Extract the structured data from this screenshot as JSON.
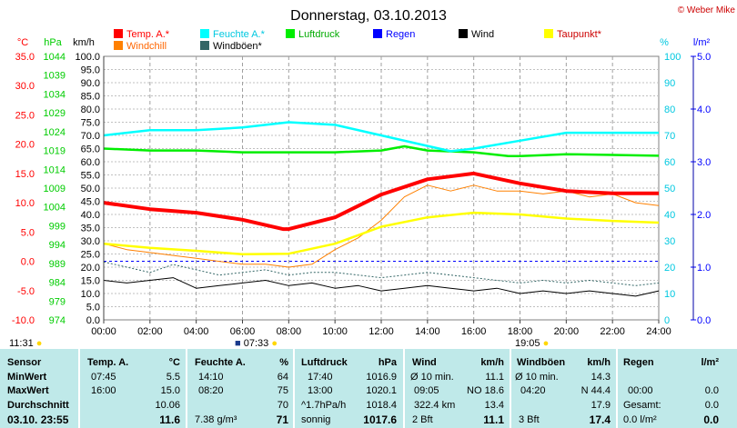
{
  "chart_data": {
    "type": "line",
    "title": "Donnerstag, 03.10.2013",
    "credit": "© Weber Mike",
    "x_ticks": [
      "00:00",
      "02:00",
      "04:00",
      "06:00",
      "08:00",
      "10:00",
      "12:00",
      "14:00",
      "16:00",
      "18:00",
      "20:00",
      "22:00",
      "24:00"
    ],
    "x_range": [
      0,
      24
    ],
    "axes": {
      "temp": {
        "unit": "°C",
        "color": "#ff0000",
        "ticks": [
          "35.0",
          "30.0",
          "25.0",
          "20.0",
          "15.0",
          "10.0",
          "5.0",
          "0.0",
          "-5.0",
          "-10.0"
        ],
        "range": [
          -10,
          35
        ]
      },
      "pressure": {
        "unit": "hPa",
        "color": "#00cc00",
        "ticks": [
          "1044",
          "1039",
          "1034",
          "1029",
          "1024",
          "1019",
          "1014",
          "1009",
          "1004",
          "999",
          "994",
          "989",
          "984",
          "979",
          "974"
        ],
        "range": [
          974,
          1044
        ]
      },
      "wind": {
        "unit": "km/h",
        "color": "#000000",
        "ticks": [
          "100.0",
          "95.0",
          "90.0",
          "85.0",
          "80.0",
          "75.0",
          "70.0",
          "65.0",
          "60.0",
          "55.0",
          "50.0",
          "45.0",
          "40.0",
          "35.0",
          "30.0",
          "25.0",
          "20.0",
          "15.0",
          "10.0",
          "5.0",
          "0.0"
        ],
        "range": [
          0,
          100
        ]
      },
      "humidity": {
        "unit": "%",
        "color": "#00c8e0",
        "ticks": [
          "100",
          "90",
          "80",
          "70",
          "60",
          "50",
          "40",
          "30",
          "20",
          "10",
          "0"
        ],
        "range": [
          0,
          100
        ]
      },
      "rain": {
        "unit": "l/m²",
        "color": "#0000ff",
        "ticks": [
          "5.0",
          "4.0",
          "3.0",
          "2.0",
          "1.0",
          "0.0"
        ],
        "range": [
          0,
          5
        ]
      }
    },
    "grid": true,
    "legend": [
      {
        "name": "Temp. A.*",
        "color": "#ff0000"
      },
      {
        "name": "Feuchte A.*",
        "color": "#00ffff"
      },
      {
        "name": "Luftdruck",
        "color": "#00ee00"
      },
      {
        "name": "Regen",
        "color": "#0000ff"
      },
      {
        "name": "Wind",
        "color": "#000000"
      },
      {
        "name": "Taupunkt*",
        "color": "#ffff00"
      },
      {
        "name": "Windchill",
        "color": "#ff8000"
      },
      {
        "name": "Windböen*",
        "color": "#336666"
      }
    ],
    "series": [
      {
        "name": "Temp. A.*",
        "axis": "temp",
        "color": "#ff0000",
        "x": [
          0,
          2,
          4,
          6,
          7.75,
          8,
          10,
          12,
          14,
          16,
          18,
          20,
          22,
          24
        ],
        "y": [
          10.0,
          8.9,
          8.3,
          7.1,
          5.5,
          5.5,
          7.5,
          11.4,
          14.0,
          15.0,
          13.3,
          12.0,
          11.6,
          11.6
        ]
      },
      {
        "name": "Feuchte A.*",
        "axis": "humidity",
        "color": "#00ffff",
        "x": [
          0,
          2,
          4,
          6,
          8,
          10,
          12,
          14,
          15,
          16,
          18,
          20,
          22,
          24
        ],
        "y": [
          70,
          72,
          72,
          73,
          75,
          74,
          70,
          66,
          64,
          65,
          68,
          71,
          71,
          71
        ]
      },
      {
        "name": "Luftdruck",
        "axis": "pressure",
        "color": "#00ee00",
        "x": [
          0,
          2,
          4,
          6,
          8,
          10,
          12,
          13,
          14,
          16,
          17.5,
          18,
          20,
          22,
          24
        ],
        "y": [
          1019.5,
          1019,
          1019,
          1018.5,
          1018.5,
          1018.5,
          1019,
          1020.1,
          1019,
          1018.5,
          1017.5,
          1017.5,
          1018,
          1017.8,
          1017.6
        ]
      },
      {
        "name": "Taupunkt*",
        "axis": "temp",
        "color": "#ffff00",
        "x": [
          0,
          2,
          4,
          6,
          8,
          10,
          12,
          14,
          16,
          18,
          20,
          22,
          24
        ],
        "y": [
          3.0,
          2.3,
          1.8,
          1.2,
          1.3,
          3.0,
          5.9,
          7.5,
          8.3,
          8.0,
          7.3,
          6.9,
          6.6
        ]
      },
      {
        "name": "Windchill",
        "axis": "temp",
        "color": "#ff8000",
        "x": [
          0,
          1,
          2,
          3,
          4,
          5,
          6,
          7,
          8,
          9,
          10,
          11,
          12,
          13,
          14,
          15,
          16,
          17,
          18,
          19,
          20,
          21,
          22,
          23,
          24
        ],
        "y": [
          3.0,
          2.0,
          1.5,
          1.0,
          0.5,
          0,
          -0.5,
          -0.5,
          -1,
          -0.5,
          2,
          4,
          7,
          11,
          13,
          12,
          13,
          12,
          12,
          11.5,
          12,
          11,
          11.5,
          10,
          9.5
        ]
      },
      {
        "name": "Windböen*",
        "axis": "wind",
        "color": "#336666",
        "x": [
          0,
          1,
          2,
          3,
          4,
          5,
          6,
          7,
          8,
          9,
          10,
          11,
          12,
          13,
          14,
          15,
          16,
          17,
          18,
          19,
          20,
          21,
          22,
          23,
          24
        ],
        "y": [
          22,
          20,
          18,
          21,
          19,
          17,
          18,
          19,
          17,
          18,
          18,
          17,
          16,
          17,
          18,
          17,
          16,
          15,
          14,
          15,
          14,
          15,
          14,
          13,
          14
        ]
      },
      {
        "name": "Wind",
        "axis": "wind",
        "color": "#000000",
        "x": [
          0,
          1,
          2,
          3,
          4,
          5,
          6,
          7,
          8,
          9,
          10,
          11,
          12,
          13,
          14,
          15,
          16,
          17,
          18,
          19,
          20,
          21,
          22,
          23,
          24
        ],
        "y": [
          15,
          14,
          15,
          16,
          12,
          13,
          14,
          15,
          13,
          14,
          12,
          13,
          11,
          12,
          13,
          12,
          11,
          12,
          10,
          11,
          10,
          11,
          10,
          9,
          11
        ]
      }
    ],
    "reference_lines": [
      {
        "axis": "temp",
        "y": 0,
        "color": "#0000ff",
        "style": "dashed"
      }
    ],
    "markers": {
      "sunrise": "07:33",
      "sunset": "19:05",
      "moonrise": "11:31"
    }
  },
  "stats": {
    "headers": {
      "sensor": "Sensor",
      "temp": "Temp. A.",
      "temp_unit": "°C",
      "humidity": "Feuchte A.",
      "humidity_unit": "%",
      "pressure": "Luftdruck",
      "pressure_unit": "hPa",
      "wind": "Wind",
      "wind_unit": "km/h",
      "gust": "Windböen",
      "gust_unit": "km/h",
      "rain": "Regen",
      "rain_unit": "l/m²"
    },
    "rows": {
      "min": {
        "label": "MinWert",
        "temp_time": "07:45",
        "temp": "5.5",
        "hum_time": "14:10",
        "hum": "64",
        "pres_time": "17:40",
        "pres": "1016.9",
        "wind_time": "Ø 10 min.",
        "wind": "11.1",
        "gust_time": "Ø 10 min.",
        "gust": "14.3",
        "rain_time": "",
        "rain": ""
      },
      "max": {
        "label": "MaxWert",
        "temp_time": "16:00",
        "temp": "15.0",
        "hum_time": "08:20",
        "hum": "75",
        "pres_time": "13:00",
        "pres": "1020.1",
        "wind_time": "09:05",
        "wind_dir": "NO 18.6",
        "gust_time": "04:20",
        "gust": "N 44.4",
        "rain_time": "00:00",
        "rain": "0.0"
      },
      "avg": {
        "label": "Durchschnitt",
        "temp": "10.06",
        "hum": "70",
        "pres_time": "^1.7hPa/h",
        "pres": "1018.4",
        "wind_time": "322.4 km",
        "wind": "13.4",
        "gust": "17.9",
        "rain_time": "Gesamt:",
        "rain": "0.0"
      },
      "now": {
        "label": "03.10. 23:55",
        "temp": "11.6",
        "hum_extra": "7.38 g/m³",
        "hum": "71",
        "pres_time": "sonnig",
        "pres": "1017.6",
        "wind_time": "2 Bft",
        "wind": "11.1",
        "gust_time": "3 Bft",
        "gust": "17.4",
        "rain_time": "0.0 l/m²",
        "rain": "0.0"
      }
    }
  }
}
